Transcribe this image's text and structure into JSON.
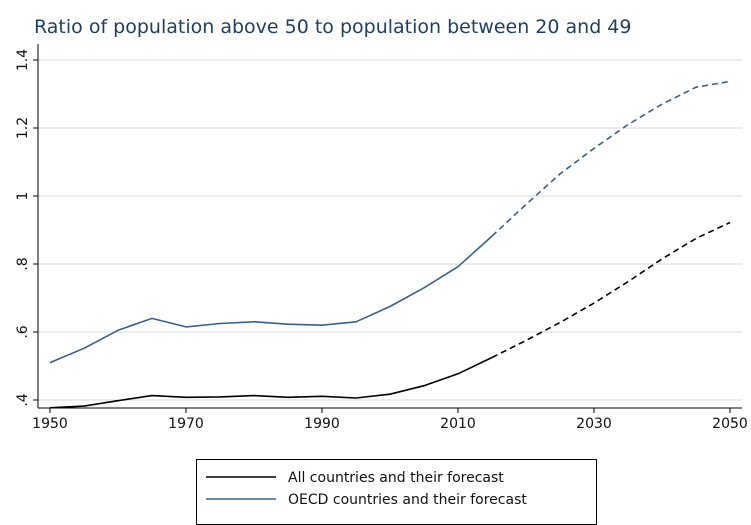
{
  "chart_data": {
    "type": "line",
    "title": "Ratio of population above 50 to population between 20 and 49",
    "xlabel": "",
    "ylabel": "",
    "xlim": [
      1950,
      2050
    ],
    "ylim": [
      0.38,
      1.4
    ],
    "x_ticks": [
      "1950",
      "1970",
      "1990",
      "2010",
      "2030",
      "2050"
    ],
    "x_tick_values": [
      1950,
      1970,
      1990,
      2010,
      2030,
      2050
    ],
    "y_ticks": [
      ".4",
      ".6",
      ".8",
      "1",
      "1.2",
      "1.4"
    ],
    "y_tick_values": [
      0.4,
      0.6,
      0.8,
      1.0,
      1.2,
      1.4
    ],
    "grid": true,
    "legend_position": "bottom-center",
    "series": [
      {
        "name": "All countries and their forecast",
        "color": "#000000",
        "observed": {
          "x": [
            1950,
            1955,
            1960,
            1965,
            1970,
            1975,
            1980,
            1985,
            1990,
            1995,
            2000,
            2005,
            2010,
            2015
          ],
          "y": [
            0.377,
            0.382,
            0.398,
            0.413,
            0.408,
            0.409,
            0.413,
            0.408,
            0.411,
            0.406,
            0.417,
            0.442,
            0.477,
            0.525
          ]
        },
        "forecast": {
          "x": [
            2015,
            2020,
            2025,
            2030,
            2035,
            2040,
            2045,
            2050
          ],
          "y": [
            0.525,
            0.575,
            0.628,
            0.685,
            0.748,
            0.815,
            0.875,
            0.922
          ]
        }
      },
      {
        "name": "OECD countries and their forecast",
        "color": "#3b5f82",
        "observed": {
          "x": [
            1950,
            1955,
            1960,
            1965,
            1970,
            1975,
            1980,
            1985,
            1990,
            1995,
            2000,
            2005,
            2010,
            2015
          ],
          "y": [
            0.51,
            0.552,
            0.605,
            0.64,
            0.615,
            0.625,
            0.63,
            0.623,
            0.62,
            0.63,
            0.675,
            0.73,
            0.792,
            0.882
          ]
        },
        "forecast": {
          "x": [
            2015,
            2020,
            2025,
            2030,
            2035,
            2040,
            2045,
            2050
          ],
          "y": [
            0.882,
            0.975,
            1.065,
            1.14,
            1.21,
            1.27,
            1.32,
            1.337
          ]
        }
      }
    ]
  }
}
